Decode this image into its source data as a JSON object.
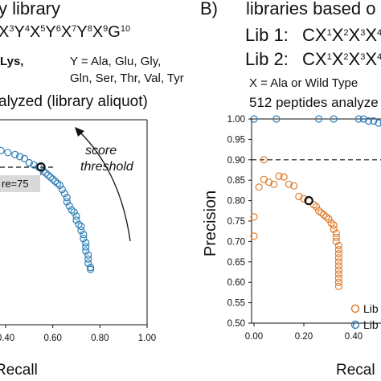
{
  "panel_a": {
    "title": "y library",
    "sequence": [
      {
        "t": "X"
      },
      {
        "s": "3"
      },
      {
        "t": "Y"
      },
      {
        "s": "4"
      },
      {
        "t": "X"
      },
      {
        "s": "5"
      },
      {
        "t": "Y"
      },
      {
        "s": "6"
      },
      {
        "t": "X"
      },
      {
        "s": "7"
      },
      {
        "t": "Y"
      },
      {
        "s": "8"
      },
      {
        "t": "X"
      },
      {
        "s": "9"
      },
      {
        "t": "G"
      },
      {
        "s": "10"
      }
    ],
    "x_def": "Lys,",
    "y_def_line1": "Y = Ala, Glu, Gly,",
    "y_def_line2": "Gln, Ser, Thr, Val, Tyr",
    "analyzed": "alyzed (library aliquot)",
    "annotation_line1": "score",
    "annotation_line2": "threshold",
    "box_label": "re=75"
  },
  "panel_b": {
    "label": "B)",
    "title": "libraries based o",
    "lib1_label": "Lib 1:",
    "lib1_seq": [
      {
        "t": "CX"
      },
      {
        "s": "1"
      },
      {
        "t": "X"
      },
      {
        "s": "2"
      },
      {
        "t": "X"
      },
      {
        "s": "3"
      },
      {
        "t": "X"
      },
      {
        "s": "4"
      }
    ],
    "lib2_label": "Lib 2:",
    "lib2_seq": [
      {
        "t": "CX"
      },
      {
        "s": "1"
      },
      {
        "t": "X"
      },
      {
        "s": "2"
      },
      {
        "t": "X"
      },
      {
        "s": "3"
      },
      {
        "t": "X"
      },
      {
        "s": "4"
      }
    ],
    "x_def": "X = Ala or Wild Type",
    "analyzed": "512 peptides analyze",
    "legend": [
      "Lib",
      "Lib"
    ]
  },
  "chart_data": [
    {
      "type": "scatter",
      "title": "",
      "xlabel": "Recall",
      "ylabel": "",
      "xlim": [
        0.0,
        1.0
      ],
      "x_ticks": [
        "0.40",
        "0.60",
        "0.80",
        "1.00"
      ],
      "grid": false,
      "annotations": [
        "score threshold",
        "re=75"
      ],
      "series": [
        {
          "color": "#2e7fb8",
          "points": [
            [
              0.0,
              0.985
            ],
            [
              0.02,
              0.985
            ],
            [
              0.05,
              0.98
            ],
            [
              0.08,
              0.975
            ],
            [
              0.11,
              0.975
            ],
            [
              0.14,
              0.97
            ],
            [
              0.17,
              0.965
            ],
            [
              0.2,
              0.96
            ],
            [
              0.23,
              0.95
            ],
            [
              0.26,
              0.945
            ],
            [
              0.29,
              0.94
            ],
            [
              0.32,
              0.935
            ],
            [
              0.35,
              0.93
            ],
            [
              0.38,
              0.925
            ],
            [
              0.41,
              0.92
            ],
            [
              0.44,
              0.915
            ],
            [
              0.46,
              0.91
            ],
            [
              0.48,
              0.905
            ],
            [
              0.5,
              0.895
            ],
            [
              0.52,
              0.89
            ],
            [
              0.54,
              0.885
            ],
            [
              0.56,
              0.875
            ],
            [
              0.57,
              0.87
            ],
            [
              0.58,
              0.865
            ],
            [
              0.59,
              0.86
            ],
            [
              0.6,
              0.855
            ],
            [
              0.61,
              0.85
            ],
            [
              0.62,
              0.845
            ],
            [
              0.63,
              0.84
            ],
            [
              0.64,
              0.83
            ],
            [
              0.65,
              0.82
            ],
            [
              0.66,
              0.81
            ],
            [
              0.66,
              0.8
            ],
            [
              0.67,
              0.79
            ],
            [
              0.68,
              0.78
            ],
            [
              0.69,
              0.775
            ],
            [
              0.7,
              0.765
            ],
            [
              0.7,
              0.755
            ],
            [
              0.71,
              0.745
            ],
            [
              0.72,
              0.74
            ],
            [
              0.72,
              0.73
            ],
            [
              0.73,
              0.72
            ],
            [
              0.73,
              0.71
            ],
            [
              0.74,
              0.7
            ],
            [
              0.74,
              0.69
            ],
            [
              0.74,
              0.68
            ],
            [
              0.75,
              0.67
            ],
            [
              0.75,
              0.66
            ],
            [
              0.75,
              0.65
            ],
            [
              0.76,
              0.64
            ],
            [
              0.76,
              0.635
            ]
          ]
        },
        {
          "color": "#111111",
          "points": [
            [
              0.55,
              0.885
            ]
          ]
        }
      ]
    },
    {
      "type": "scatter",
      "title": "",
      "xlabel": "Recal",
      "ylabel": "Precision",
      "xlim": [
        0.0,
        0.6
      ],
      "ylim": [
        0.5,
        1.0
      ],
      "x_ticks": [
        "0.00",
        "0.20",
        "0.40"
      ],
      "y_ticks": [
        "0.50",
        "0.55",
        "0.60",
        "0.65",
        "0.70",
        "0.75",
        "0.80",
        "0.85",
        "0.90",
        "0.95",
        "1.00"
      ],
      "grid": false,
      "reference_lines": [
        0.9,
        1.0
      ],
      "legend_position": "bottom-right",
      "series": [
        {
          "name": "Lib",
          "color": "#e07b2a",
          "points": [
            [
              0.0,
              0.713
            ],
            [
              0.0,
              0.76
            ],
            [
              0.02,
              0.833
            ],
            [
              0.04,
              0.852
            ],
            [
              0.06,
              0.845
            ],
            [
              0.08,
              0.84
            ],
            [
              0.1,
              0.86
            ],
            [
              0.12,
              0.858
            ],
            [
              0.14,
              0.84
            ],
            [
              0.16,
              0.836
            ],
            [
              0.18,
              0.81
            ],
            [
              0.2,
              0.805
            ],
            [
              0.22,
              0.8
            ],
            [
              0.24,
              0.79
            ],
            [
              0.25,
              0.785
            ],
            [
              0.26,
              0.775
            ],
            [
              0.27,
              0.77
            ],
            [
              0.28,
              0.765
            ],
            [
              0.29,
              0.76
            ],
            [
              0.3,
              0.755
            ],
            [
              0.31,
              0.745
            ],
            [
              0.32,
              0.74
            ],
            [
              0.32,
              0.73
            ],
            [
              0.33,
              0.72
            ],
            [
              0.33,
              0.71
            ],
            [
              0.33,
              0.7
            ],
            [
              0.34,
              0.69
            ],
            [
              0.34,
              0.68
            ],
            [
              0.34,
              0.67
            ],
            [
              0.34,
              0.66
            ],
            [
              0.34,
              0.65
            ],
            [
              0.34,
              0.64
            ],
            [
              0.34,
              0.63
            ],
            [
              0.34,
              0.62
            ],
            [
              0.34,
              0.61
            ],
            [
              0.34,
              0.6
            ],
            [
              0.34,
              0.59
            ],
            [
              0.04,
              0.9
            ]
          ]
        },
        {
          "name": "Lib",
          "color": "#2e7fb8",
          "points": [
            [
              0.0,
              1.0
            ],
            [
              0.09,
              1.0
            ],
            [
              0.26,
              1.0
            ],
            [
              0.32,
              1.0
            ],
            [
              0.42,
              1.0
            ],
            [
              0.44,
              1.0
            ],
            [
              0.46,
              0.995
            ],
            [
              0.48,
              0.995
            ],
            [
              0.5,
              0.99
            ],
            [
              0.52,
              0.99
            ],
            [
              0.54,
              0.99
            ],
            [
              0.56,
              0.985
            ]
          ]
        },
        {
          "color": "#111111",
          "points": [
            [
              0.22,
              0.8
            ]
          ]
        }
      ]
    }
  ]
}
